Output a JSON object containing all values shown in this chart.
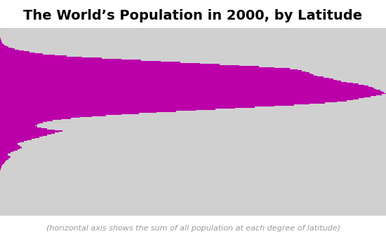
{
  "title": "The World’s Population in 2000, by Latitude",
  "subtitle": "(horizontal axis shows the sum of all population at each degree of latitude)",
  "title_fontsize": 14,
  "subtitle_fontsize": 8,
  "bg_color": "#ffffff",
  "map_color": "#d0d0d0",
  "bar_color": "#bb00aa",
  "figure_size": [
    5.5,
    3.34
  ],
  "dpi": 100,
  "latitudes": [
    90,
    89,
    88,
    87,
    86,
    85,
    84,
    83,
    82,
    81,
    80,
    79,
    78,
    77,
    76,
    75,
    74,
    73,
    72,
    71,
    70,
    69,
    68,
    67,
    66,
    65,
    64,
    63,
    62,
    61,
    60,
    59,
    58,
    57,
    56,
    55,
    54,
    53,
    52,
    51,
    50,
    49,
    48,
    47,
    46,
    45,
    44,
    43,
    42,
    41,
    40,
    39,
    38,
    37,
    36,
    35,
    34,
    33,
    32,
    31,
    30,
    29,
    28,
    27,
    26,
    25,
    24,
    23,
    22,
    21,
    20,
    19,
    18,
    17,
    16,
    15,
    14,
    13,
    12,
    11,
    10,
    9,
    8,
    7,
    6,
    5,
    4,
    3,
    2,
    1,
    0,
    -1,
    -2,
    -3,
    -4,
    -5,
    -6,
    -7,
    -8,
    -9,
    -10,
    -11,
    -12,
    -13,
    -14,
    -15,
    -16,
    -17,
    -18,
    -19,
    -20,
    -21,
    -22,
    -23,
    -24,
    -25,
    -26,
    -27,
    -28,
    -29,
    -30,
    -31,
    -32,
    -33,
    -34,
    -35,
    -36,
    -37,
    -38,
    -39,
    -40,
    -41,
    -42,
    -43,
    -44,
    -45,
    -46,
    -47,
    -48,
    -49,
    -50,
    -51,
    -52,
    -53,
    -54,
    -55,
    -56,
    -57,
    -58,
    -59,
    -60,
    -61,
    -62,
    -63,
    -64,
    -65,
    -66,
    -67,
    -68,
    -69,
    -70,
    -71,
    -72,
    -73,
    -74,
    -75,
    -76,
    -77,
    -78,
    -79,
    -80,
    -81,
    -82,
    -83,
    -84,
    -85,
    -86,
    -87,
    -88,
    -89,
    -90
  ],
  "population": [
    0.0,
    0.0,
    0.0,
    0.0,
    0.0,
    0.01,
    0.01,
    0.02,
    0.05,
    0.08,
    0.12,
    0.18,
    0.28,
    0.4,
    0.55,
    0.75,
    1.1,
    1.6,
    2.2,
    3.0,
    3.8,
    4.8,
    6.0,
    7.5,
    9.0,
    11.0,
    14.0,
    17.0,
    21.0,
    26.0,
    31.0,
    36.0,
    41.0,
    46.0,
    51.0,
    56.0,
    61.0,
    66.0,
    70.0,
    74.0,
    76.0,
    77.0,
    78.0,
    79.0,
    79.5,
    80.0,
    81.0,
    82.5,
    84.0,
    85.0,
    86.0,
    87.0,
    88.5,
    90.0,
    91.5,
    93.0,
    94.0,
    95.0,
    95.5,
    96.0,
    97.0,
    97.5,
    98.0,
    98.5,
    97.5,
    96.0,
    94.5,
    93.0,
    91.5,
    90.0,
    88.5,
    86.0,
    83.0,
    79.0,
    75.0,
    70.0,
    65.0,
    60.0,
    55.0,
    50.0,
    45.0,
    40.0,
    35.5,
    31.0,
    27.0,
    23.5,
    20.5,
    18.0,
    15.5,
    13.5,
    12.0,
    11.0,
    10.0,
    9.5,
    9.0,
    9.5,
    10.5,
    12.0,
    14.0,
    16.0,
    15.0,
    14.0,
    13.0,
    12.0,
    11.0,
    10.0,
    9.0,
    8.0,
    7.0,
    6.0,
    5.0,
    4.5,
    4.5,
    5.0,
    5.5,
    5.5,
    5.0,
    4.5,
    3.8,
    3.2,
    2.6,
    2.0,
    2.0,
    2.3,
    2.6,
    2.5,
    2.2,
    1.8,
    1.5,
    1.2,
    1.0,
    0.7,
    0.55,
    0.4,
    0.3,
    0.2,
    0.12,
    0.08,
    0.05,
    0.03,
    0.02,
    0.01,
    0.01,
    0.005,
    0.003,
    0.002,
    0.001,
    0.0,
    0.0,
    0.0,
    0.0,
    0.0,
    0.0,
    0.0,
    0.0,
    0.0,
    0.0,
    0.0,
    0.0,
    0.0,
    0.0,
    0.0,
    0.0,
    0.0,
    0.0,
    0.0,
    0.0,
    0.0,
    0.0,
    0.0,
    0.0,
    0.0,
    0.0,
    0.0,
    0.0,
    0.0,
    0.0,
    0.0,
    0.0,
    0.0,
    0.0
  ],
  "ylim": [
    -90,
    90
  ],
  "grid_latitudes": [
    60,
    30,
    0,
    -30,
    -60
  ],
  "grid_color": "#cccccc",
  "grid_linewidth": 0.6,
  "border_color": "#cccccc"
}
